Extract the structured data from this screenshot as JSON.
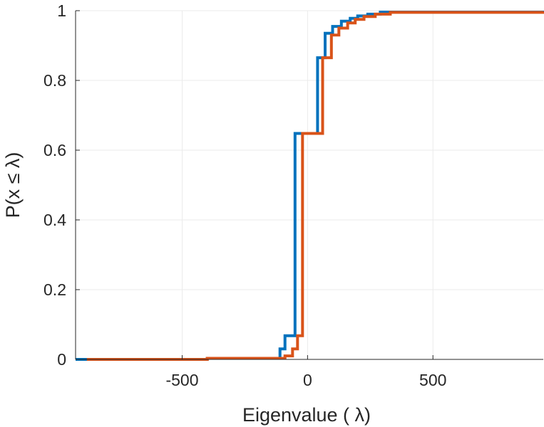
{
  "chart_data": {
    "type": "line",
    "step": true,
    "xlabel": "Eigenvalue (  λ)",
    "ylabel": "P(x ≤ λ)",
    "xlim": [
      -925,
      940
    ],
    "ylim": [
      0,
      1
    ],
    "xticks": [
      -500,
      0,
      500
    ],
    "xtick_labels": [
      "-500",
      "0",
      "500"
    ],
    "yticks": [
      0,
      0.2,
      0.4,
      0.6,
      0.8,
      1
    ],
    "ytick_labels": [
      "0",
      "0.2",
      "0.4",
      "0.6",
      "0.8",
      "1"
    ],
    "grid": true,
    "legend": false,
    "series": [
      {
        "color": "#0072bd",
        "x": [
          -925,
          -400,
          -130,
          -110,
          -90,
          -65,
          -50,
          15,
          40,
          70,
          100,
          135,
          170,
          200,
          240,
          290,
          940
        ],
        "y": [
          0,
          0.003,
          0.003,
          0.03,
          0.068,
          0.068,
          0.648,
          0.648,
          0.865,
          0.935,
          0.955,
          0.97,
          0.978,
          0.985,
          0.99,
          0.996,
          1.0
        ]
      },
      {
        "color": "#d95319",
        "x": [
          -880,
          -400,
          -110,
          -90,
          -60,
          -40,
          -20,
          30,
          60,
          95,
          125,
          160,
          190,
          225,
          270,
          330,
          940
        ],
        "y": [
          0,
          0.003,
          0.003,
          0.01,
          0.03,
          0.068,
          0.648,
          0.648,
          0.865,
          0.93,
          0.95,
          0.965,
          0.975,
          0.983,
          0.99,
          0.995,
          0.998
        ]
      }
    ]
  }
}
